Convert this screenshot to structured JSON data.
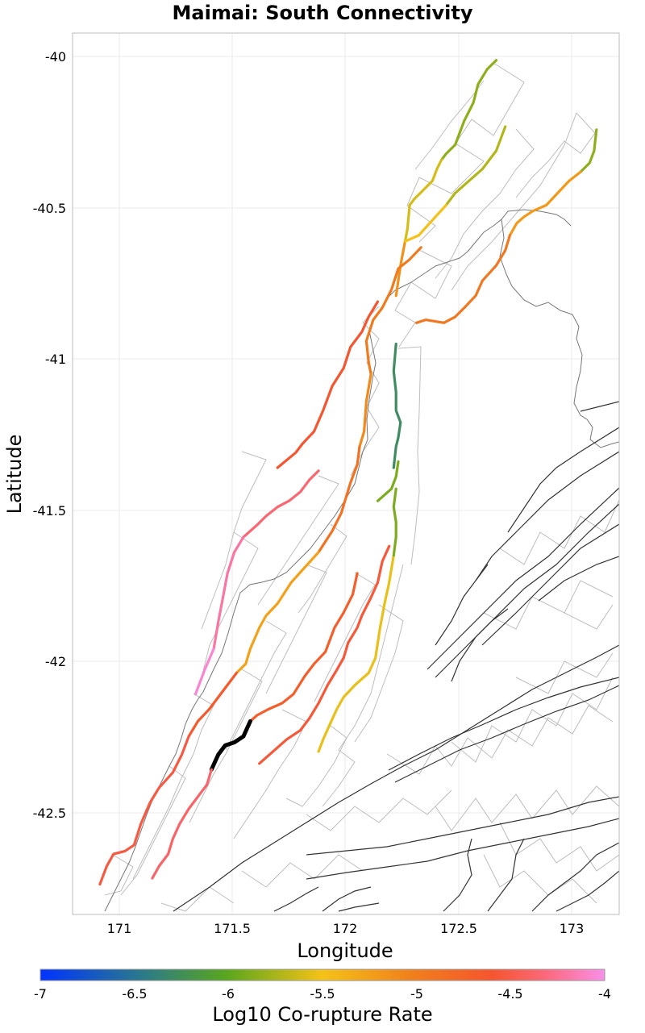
{
  "chart_data": {
    "type": "map",
    "title": "Maimai: South Connectivity",
    "xlabel": "Longitude",
    "ylabel": "Latitude",
    "xlim": [
      170.8,
      173.2
    ],
    "ylim": [
      -42.85,
      -39.93
    ],
    "x_ticks": [
      "171",
      "171.5",
      "172",
      "172.5",
      "173"
    ],
    "y_ticks": [
      "-40",
      "-40.5",
      "-41",
      "-41.5",
      "-42",
      "-42.5"
    ],
    "grid": true,
    "colorbar": {
      "label": "Log10 Co-rupture Rate",
      "ticks": [
        "-7",
        "-6.5",
        "-6",
        "-5.5",
        "-5",
        "-4.5",
        "-4"
      ],
      "range": [
        -7,
        -4
      ],
      "stops": [
        "#0033ff",
        "#2b7a8a",
        "#5aa61e",
        "#f5c218",
        "#f07f1c",
        "#f5552e",
        "#fb6a80",
        "#f98fe8"
      ]
    },
    "source_fault_color": "#000000",
    "fault_traces": [
      {
        "rate": -6.0,
        "pts": [
          [
            172.66,
            -40.02
          ],
          [
            172.62,
            -40.05
          ],
          [
            172.58,
            -40.1
          ],
          [
            172.56,
            -40.16
          ],
          [
            172.52,
            -40.22
          ],
          [
            172.48,
            -40.3
          ],
          [
            172.44,
            -40.33
          ],
          [
            172.42,
            -40.35
          ]
        ]
      },
      {
        "rate": -5.8,
        "pts": [
          [
            172.42,
            -40.35
          ],
          [
            172.4,
            -40.38
          ],
          [
            172.38,
            -40.42
          ],
          [
            172.34,
            -40.45
          ],
          [
            172.3,
            -40.48
          ],
          [
            172.28,
            -40.5
          ],
          [
            172.27,
            -40.58
          ],
          [
            172.26,
            -40.62
          ]
        ]
      },
      {
        "rate": -5.4,
        "pts": [
          [
            172.26,
            -40.62
          ],
          [
            172.24,
            -40.7
          ],
          [
            172.22,
            -40.8
          ]
        ]
      },
      {
        "rate": -5.9,
        "pts": [
          [
            172.7,
            -40.24
          ],
          [
            172.66,
            -40.32
          ],
          [
            172.6,
            -40.38
          ],
          [
            172.54,
            -40.42
          ],
          [
            172.48,
            -40.46
          ],
          [
            172.44,
            -40.5
          ]
        ]
      },
      {
        "rate": -5.7,
        "pts": [
          [
            172.44,
            -40.5
          ],
          [
            172.38,
            -40.55
          ],
          [
            172.32,
            -40.6
          ],
          [
            172.26,
            -40.62
          ]
        ]
      },
      {
        "rate": -6.0,
        "pts": [
          [
            173.1,
            -40.25
          ],
          [
            173.09,
            -40.32
          ],
          [
            173.07,
            -40.36
          ],
          [
            173.03,
            -40.39
          ]
        ]
      },
      {
        "rate": -5.45,
        "pts": [
          [
            173.03,
            -40.39
          ],
          [
            172.98,
            -40.42
          ],
          [
            172.93,
            -40.46
          ],
          [
            172.88,
            -40.5
          ],
          [
            172.82,
            -40.52
          ],
          [
            172.78,
            -40.54
          ],
          [
            172.75,
            -40.56
          ],
          [
            172.72,
            -40.6
          ]
        ]
      },
      {
        "rate": -5.2,
        "pts": [
          [
            172.72,
            -40.6
          ],
          [
            172.7,
            -40.65
          ],
          [
            172.66,
            -40.7
          ],
          [
            172.6,
            -40.75
          ],
          [
            172.57,
            -40.8
          ],
          [
            172.52,
            -40.84
          ],
          [
            172.48,
            -40.87
          ],
          [
            172.43,
            -40.89
          ],
          [
            172.35,
            -40.88
          ],
          [
            172.31,
            -40.89
          ]
        ]
      },
      {
        "rate": -5.25,
        "pts": [
          [
            172.33,
            -40.64
          ],
          [
            172.28,
            -40.68
          ],
          [
            172.23,
            -40.71
          ],
          [
            172.2,
            -40.78
          ],
          [
            172.16,
            -40.84
          ],
          [
            172.12,
            -40.88
          ],
          [
            172.09,
            -40.95
          ],
          [
            172.1,
            -41.02
          ],
          [
            172.11,
            -41.06
          ]
        ]
      },
      {
        "rate": -5.35,
        "pts": [
          [
            172.11,
            -41.06
          ],
          [
            172.09,
            -41.15
          ],
          [
            172.08,
            -41.25
          ],
          [
            172.06,
            -41.3
          ]
        ]
      },
      {
        "rate": -5.15,
        "pts": [
          [
            172.06,
            -41.3
          ],
          [
            172.05,
            -41.36
          ],
          [
            172.02,
            -41.42
          ],
          [
            171.98,
            -41.52
          ],
          [
            171.94,
            -41.58
          ],
          [
            171.88,
            -41.65
          ]
        ]
      },
      {
        "rate": -4.85,
        "pts": [
          [
            172.14,
            -40.82
          ],
          [
            172.1,
            -40.87
          ],
          [
            172.07,
            -40.92
          ],
          [
            172.02,
            -40.97
          ],
          [
            171.99,
            -41.04
          ],
          [
            171.94,
            -41.1
          ],
          [
            171.9,
            -41.18
          ],
          [
            171.86,
            -41.25
          ],
          [
            171.81,
            -41.29
          ],
          [
            171.78,
            -41.32
          ],
          [
            171.7,
            -41.37
          ]
        ]
      },
      {
        "rate": -4.5,
        "pts": [
          [
            171.88,
            -41.38
          ],
          [
            171.84,
            -41.41
          ],
          [
            171.8,
            -41.45
          ],
          [
            171.75,
            -41.48
          ],
          [
            171.7,
            -41.5
          ],
          [
            171.65,
            -41.53
          ],
          [
            171.61,
            -41.56
          ],
          [
            171.55,
            -41.6
          ]
        ]
      },
      {
        "rate": -4.3,
        "pts": [
          [
            171.55,
            -41.6
          ],
          [
            171.51,
            -41.65
          ],
          [
            171.48,
            -41.72
          ],
          [
            171.46,
            -41.8
          ],
          [
            171.44,
            -41.88
          ],
          [
            171.42,
            -41.97
          ]
        ]
      },
      {
        "rate": -4.1,
        "pts": [
          [
            171.42,
            -41.97
          ],
          [
            171.38,
            -42.04
          ],
          [
            171.34,
            -42.12
          ]
        ]
      },
      {
        "rate": -5.5,
        "pts": [
          [
            171.88,
            -41.65
          ],
          [
            171.82,
            -41.7
          ],
          [
            171.76,
            -41.75
          ],
          [
            171.7,
            -41.82
          ],
          [
            171.65,
            -41.86
          ],
          [
            171.62,
            -41.9
          ],
          [
            171.58,
            -41.97
          ],
          [
            171.56,
            -42.02
          ],
          [
            171.52,
            -42.05
          ]
        ]
      },
      {
        "rate": -4.9,
        "pts": [
          [
            171.52,
            -42.05
          ],
          [
            171.48,
            -42.09
          ],
          [
            171.44,
            -42.13
          ],
          [
            171.4,
            -42.17
          ],
          [
            171.35,
            -42.21
          ],
          [
            171.31,
            -42.26
          ]
        ]
      },
      {
        "rate": -4.75,
        "pts": [
          [
            171.31,
            -42.26
          ],
          [
            171.28,
            -42.32
          ],
          [
            171.24,
            -42.38
          ],
          [
            171.18,
            -42.43
          ],
          [
            171.14,
            -42.48
          ],
          [
            171.1,
            -42.55
          ],
          [
            171.07,
            -42.62
          ],
          [
            171.03,
            -42.64
          ],
          [
            170.98,
            -42.65
          ],
          [
            170.95,
            -42.69
          ],
          [
            170.92,
            -42.75
          ]
        ]
      },
      {
        "rate": -4.95,
        "pts": [
          [
            172.05,
            -41.72
          ],
          [
            172.03,
            -41.79
          ],
          [
            171.99,
            -41.85
          ],
          [
            171.95,
            -41.9
          ],
          [
            171.91,
            -41.98
          ],
          [
            171.86,
            -42.02
          ],
          [
            171.82,
            -42.06
          ],
          [
            171.77,
            -42.12
          ],
          [
            171.72,
            -42.15
          ],
          [
            171.66,
            -42.17
          ],
          [
            171.61,
            -42.19
          ],
          [
            171.58,
            -42.21
          ]
        ]
      },
      {
        "rate": -7.0,
        "pts": [
          [
            171.58,
            -42.21
          ],
          [
            171.55,
            -42.26
          ],
          [
            171.51,
            -42.28
          ],
          [
            171.47,
            -42.29
          ],
          [
            171.44,
            -42.32
          ],
          [
            171.41,
            -42.37
          ]
        ]
      },
      {
        "rate": -4.55,
        "pts": [
          [
            171.41,
            -42.37
          ],
          [
            171.39,
            -42.42
          ],
          [
            171.35,
            -42.46
          ],
          [
            171.31,
            -42.5
          ],
          [
            171.27,
            -42.55
          ],
          [
            171.24,
            -42.6
          ],
          [
            171.22,
            -42.65
          ],
          [
            171.18,
            -42.69
          ],
          [
            171.15,
            -42.73
          ]
        ]
      },
      {
        "rate": -4.8,
        "pts": [
          [
            172.19,
            -41.63
          ],
          [
            172.16,
            -41.68
          ],
          [
            172.14,
            -41.75
          ],
          [
            172.11,
            -41.8
          ],
          [
            172.07,
            -41.86
          ],
          [
            172.05,
            -41.9
          ],
          [
            172.01,
            -41.95
          ],
          [
            171.99,
            -42.0
          ],
          [
            171.96,
            -42.04
          ],
          [
            171.92,
            -42.09
          ],
          [
            171.88,
            -42.15
          ],
          [
            171.84,
            -42.2
          ],
          [
            171.8,
            -42.24
          ],
          [
            171.74,
            -42.27
          ],
          [
            171.68,
            -42.31
          ],
          [
            171.62,
            -42.35
          ]
        ]
      },
      {
        "rate": -5.75,
        "pts": [
          [
            172.21,
            -41.66
          ],
          [
            172.19,
            -41.75
          ],
          [
            172.17,
            -41.82
          ],
          [
            172.15,
            -41.9
          ],
          [
            172.13,
            -42.0
          ],
          [
            172.1,
            -42.05
          ],
          [
            172.04,
            -42.09
          ],
          [
            171.99,
            -42.13
          ],
          [
            171.96,
            -42.17
          ],
          [
            171.93,
            -42.22
          ],
          [
            171.9,
            -42.27
          ],
          [
            171.88,
            -42.31
          ]
        ]
      },
      {
        "rate": -6.05,
        "pts": [
          [
            172.23,
            -41.35
          ],
          [
            172.22,
            -41.4
          ],
          [
            172.2,
            -41.44
          ],
          [
            172.17,
            -41.46
          ],
          [
            172.14,
            -41.48
          ]
        ]
      },
      {
        "rate": -6.05,
        "pts": [
          [
            172.22,
            -41.44
          ],
          [
            172.21,
            -41.5
          ],
          [
            172.22,
            -41.55
          ],
          [
            172.22,
            -41.6
          ],
          [
            172.21,
            -41.66
          ]
        ]
      },
      {
        "rate": -6.4,
        "pts": [
          [
            172.22,
            -40.96
          ],
          [
            172.21,
            -41.05
          ],
          [
            172.22,
            -41.12
          ],
          [
            172.22,
            -41.18
          ],
          [
            172.24,
            -41.22
          ],
          [
            172.23,
            -41.27
          ],
          [
            172.22,
            -41.3
          ],
          [
            172.21,
            -41.37
          ]
        ]
      }
    ]
  }
}
